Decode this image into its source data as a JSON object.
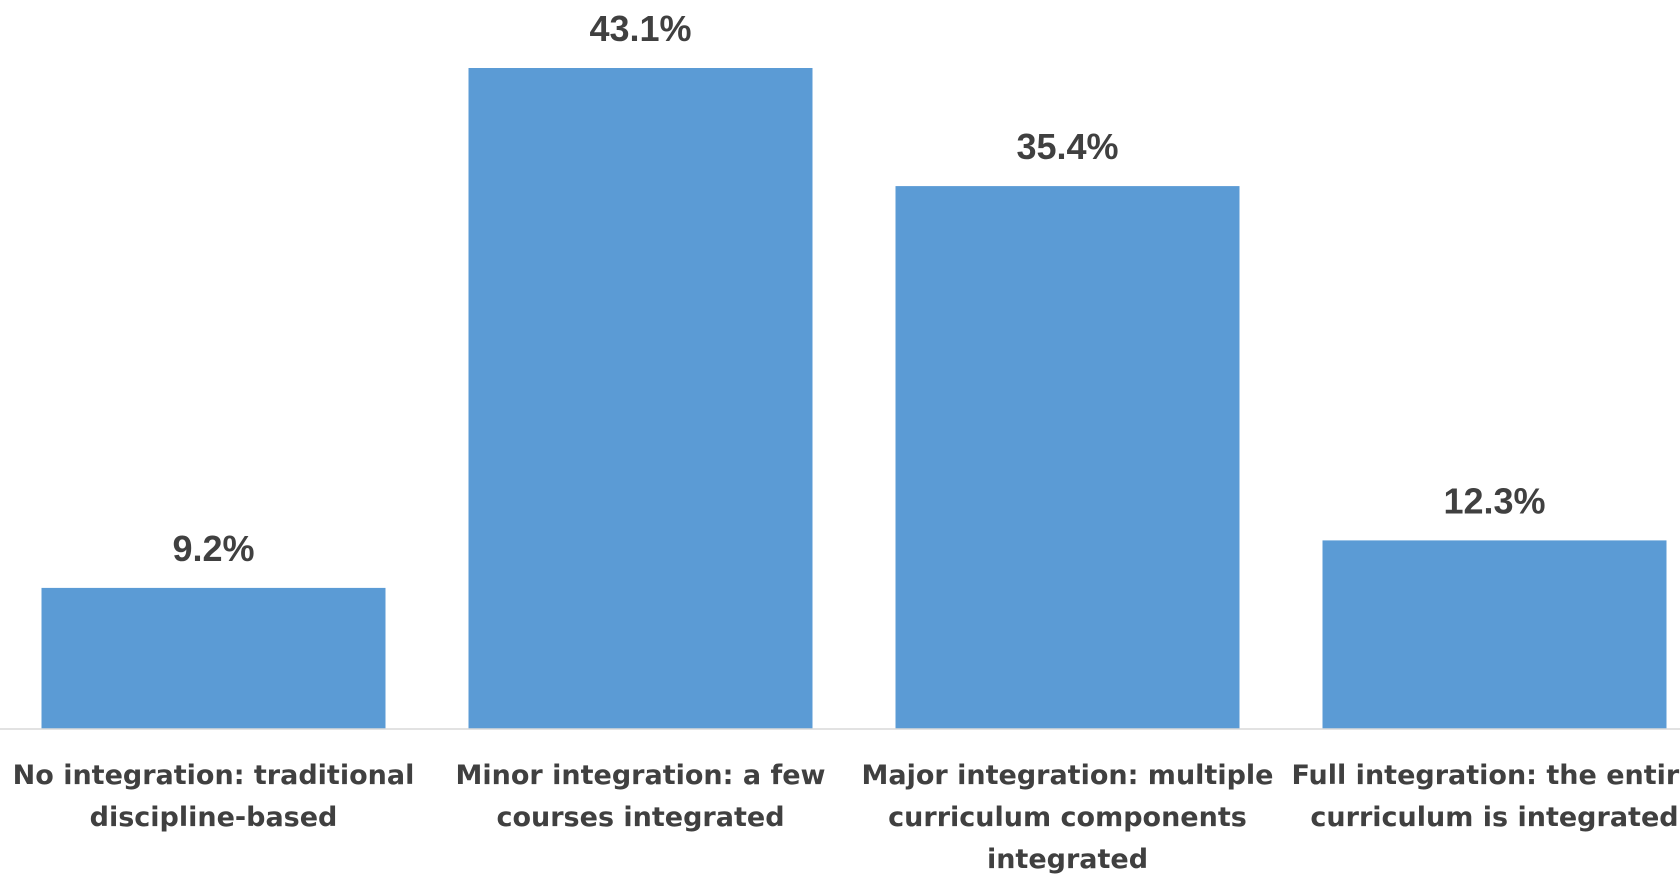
{
  "chart_data": {
    "type": "bar",
    "categories": [
      "No integration: traditional discipline-based",
      "Minor integration: a few courses integrated",
      "Major integration: multiple curriculum components integrated",
      "Full integration: the entire curriculum is integrated"
    ],
    "category_lines": [
      [
        "No integration: traditional",
        "discipline-based"
      ],
      [
        "Minor integration: a few",
        "courses integrated"
      ],
      [
        "Major integration: multiple",
        "curriculum components",
        "integrated"
      ],
      [
        "Full integration: the entire",
        "curriculum is integrated"
      ]
    ],
    "values": [
      9.2,
      43.1,
      35.4,
      12.3
    ],
    "value_labels": [
      "9.2%",
      "43.1%",
      "35.4%",
      "12.3%"
    ],
    "ylim": [
      0,
      43.1
    ],
    "grid": false,
    "legend": "none",
    "bar_color": "#5b9bd5",
    "text_color": "#404040",
    "axis_color": "#d9d9d9"
  }
}
